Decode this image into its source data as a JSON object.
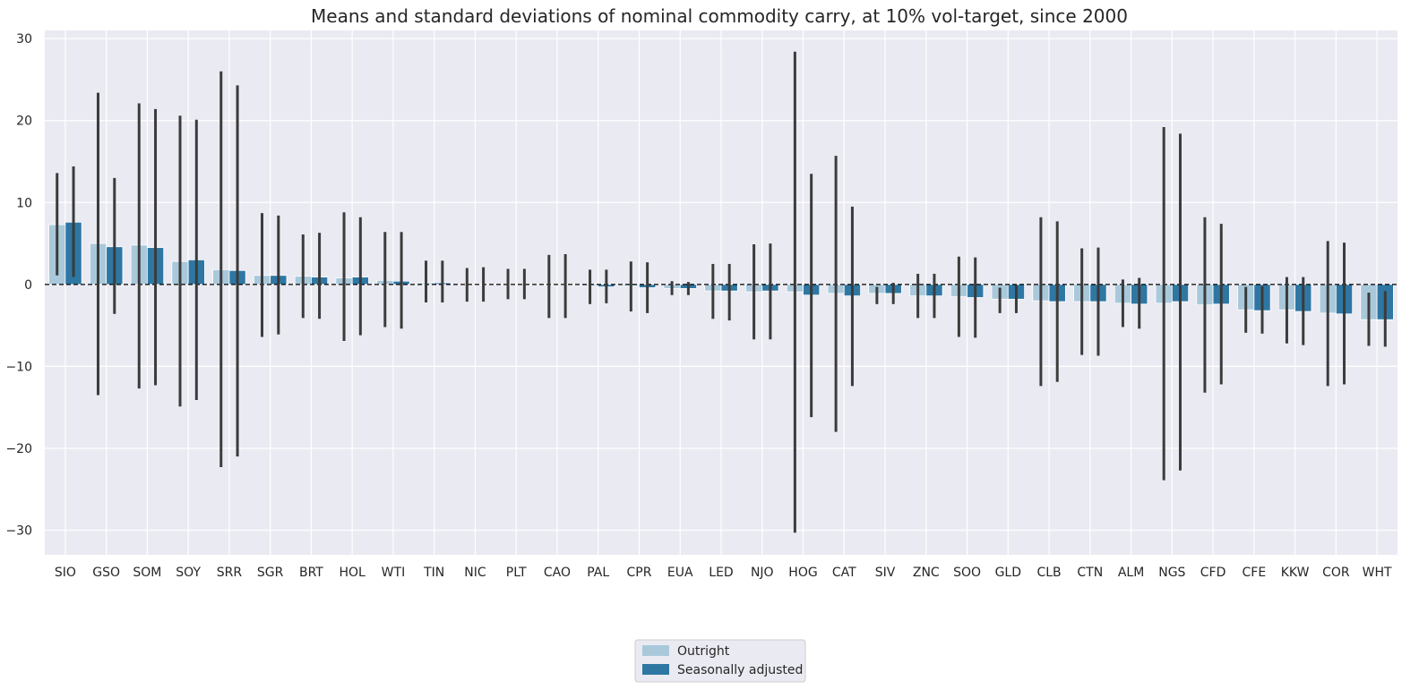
{
  "chart_data": {
    "type": "bar",
    "title": "Means and standard deviations of nominal commodity carry, at 10% vol-target, since 2000",
    "xlabel": "",
    "ylabel": "",
    "ylim": [
      -33.0,
      31.0
    ],
    "yticks": [
      30,
      20,
      10,
      0,
      -10,
      -20,
      -30
    ],
    "grid": true,
    "legend_position": "bottom-center",
    "zero_line": "dashed",
    "error_bars": "mean ± standard deviation",
    "categories": [
      "SIO",
      "GSO",
      "SOM",
      "SOY",
      "SRR",
      "SGR",
      "BRT",
      "HOL",
      "WTI",
      "TIN",
      "NIC",
      "PLT",
      "CAO",
      "PAL",
      "CPR",
      "EUA",
      "LED",
      "NJO",
      "HOG",
      "CAT",
      "SIV",
      "ZNC",
      "SOO",
      "GLD",
      "CLB",
      "CTN",
      "ALM",
      "NGS",
      "CFD",
      "CFE",
      "KKW",
      "COR",
      "WHT"
    ],
    "series": [
      {
        "name": "Outright",
        "color": "#a9c9db",
        "values": [
          7.3,
          5.0,
          4.8,
          2.8,
          1.8,
          1.1,
          1.0,
          0.8,
          0.5,
          0.2,
          0.0,
          0.0,
          -0.1,
          -0.2,
          -0.2,
          -0.5,
          -0.8,
          -0.9,
          -0.9,
          -1.1,
          -1.1,
          -1.4,
          -1.5,
          -1.8,
          -2.0,
          -2.1,
          -2.3,
          -2.3,
          -2.5,
          -3.1,
          -3.1,
          -3.5,
          -4.3
        ],
        "err_low": [
          1.1,
          -13.5,
          -12.7,
          -14.9,
          -22.3,
          -6.4,
          -4.1,
          -6.9,
          -5.2,
          -2.2,
          -2.1,
          -1.8,
          -4.1,
          -2.4,
          -3.3,
          -1.3,
          -4.2,
          -6.7,
          -30.3,
          -18.0,
          -2.4,
          -4.1,
          -6.4,
          -3.5,
          -12.4,
          -8.6,
          -5.2,
          -23.9,
          -13.2,
          -5.9,
          -7.2,
          -12.4,
          -7.5
        ],
        "err_high": [
          13.6,
          23.4,
          22.1,
          20.6,
          26.0,
          8.7,
          6.1,
          8.8,
          6.4,
          2.9,
          2.0,
          1.9,
          3.6,
          1.8,
          2.8,
          0.4,
          2.5,
          4.9,
          28.4,
          15.7,
          -0.3,
          1.3,
          3.4,
          -0.4,
          8.2,
          4.4,
          0.6,
          19.2,
          8.2,
          -0.3,
          0.9,
          5.3,
          -1.0
        ]
      },
      {
        "name": "Seasonally adjusted",
        "color": "#2f77a3",
        "values": [
          7.6,
          4.6,
          4.5,
          3.0,
          1.7,
          1.1,
          0.9,
          0.9,
          0.4,
          0.2,
          0.0,
          0.0,
          -0.1,
          -0.3,
          -0.4,
          -0.5,
          -0.8,
          -0.8,
          -1.3,
          -1.4,
          -1.1,
          -1.4,
          -1.6,
          -1.8,
          -2.1,
          -2.1,
          -2.4,
          -2.1,
          -2.4,
          -3.2,
          -3.3,
          -3.6,
          -4.3
        ],
        "err_low": [
          0.9,
          -3.6,
          -12.3,
          -14.1,
          -21.0,
          -6.1,
          -4.2,
          -6.2,
          -5.4,
          -2.2,
          -2.1,
          -1.8,
          -4.1,
          -2.3,
          -3.5,
          -1.3,
          -4.4,
          -6.7,
          -16.2,
          -12.4,
          -2.4,
          -4.1,
          -6.5,
          -3.5,
          -11.9,
          -8.7,
          -5.4,
          -22.7,
          -12.2,
          -6.0,
          -7.4,
          -12.2,
          -7.6
        ],
        "err_high": [
          14.4,
          13.0,
          21.4,
          20.1,
          24.3,
          8.4,
          6.3,
          8.2,
          6.4,
          2.9,
          2.1,
          1.9,
          3.7,
          1.8,
          2.7,
          0.3,
          2.5,
          5.0,
          13.5,
          9.5,
          0.2,
          1.3,
          3.3,
          -0.1,
          7.7,
          4.5,
          0.8,
          18.4,
          7.4,
          -0.2,
          0.9,
          5.1,
          -0.8
        ]
      }
    ]
  }
}
